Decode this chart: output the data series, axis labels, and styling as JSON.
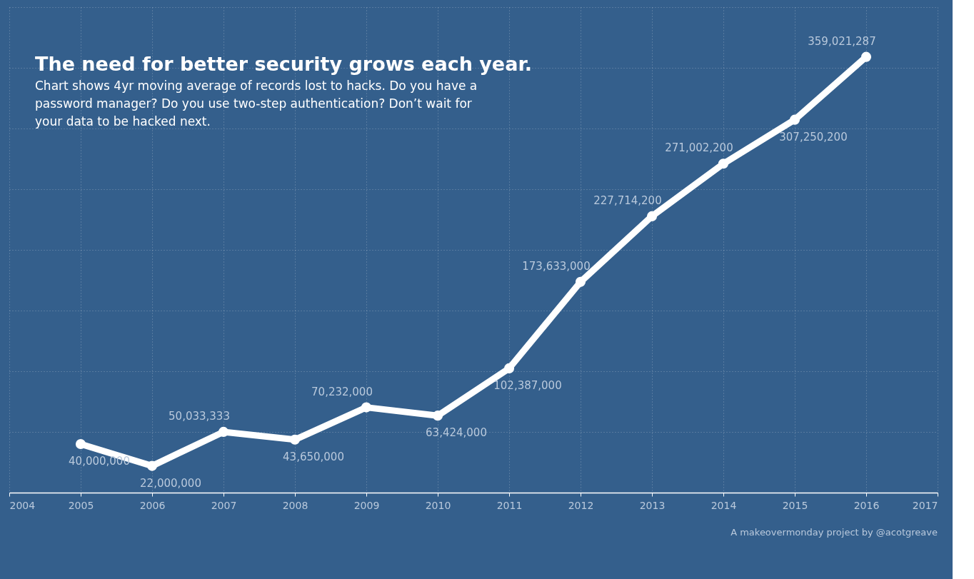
{
  "chart_data": {
    "type": "line",
    "title": "The need for better security grows each year.",
    "subtitle": "Chart shows 4yr moving average of records lost to hacks. Do you have a password manager? Do you use two-step authentication? Don’t wait for your data to be hacked next.",
    "x": [
      2005,
      2006,
      2007,
      2008,
      2009,
      2010,
      2011,
      2012,
      2013,
      2014,
      2015,
      2016
    ],
    "series": [
      {
        "color": "#ffffff",
        "values": [
          40000000,
          22000000,
          50033333,
          43650000,
          70232000,
          63424000,
          102387000,
          173633000,
          227714200,
          271002200,
          307250200,
          359021287
        ],
        "value_labels": [
          "40,000,000",
          "22,000,000",
          "50,033,333",
          "43,650,000",
          "70,232,000",
          "63,424,000",
          "102,387,000",
          "173,633,000",
          "227,714,200",
          "271,002,200",
          "307,250,200",
          "359,021,287"
        ]
      }
    ],
    "marker": "circle",
    "grid": true,
    "tick_labels": "x",
    "xlim": [
      2004,
      2017
    ],
    "xticks": [
      2004,
      2005,
      2006,
      2007,
      2008,
      2009,
      2010,
      2011,
      2012,
      2013,
      2014,
      2015,
      2016,
      2017
    ],
    "annotations": [
      "A makeovermonday project by @acotgreave"
    ]
  }
}
